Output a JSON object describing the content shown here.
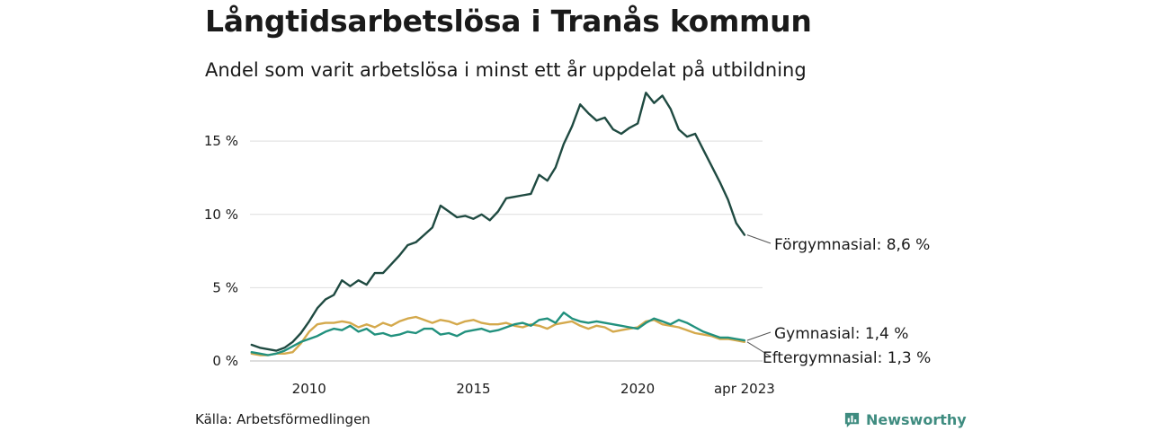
{
  "header": {
    "title": "Långtidsarbetslösa i Tranås kommun",
    "subtitle": "Andel som varit arbetslösa i minst ett år uppdelat på utbildning"
  },
  "footer": {
    "source": "Källa: Arbetsförmedlingen",
    "brand": "Newsworthy",
    "brand_icon": "bar-chart-speech-bubble-icon",
    "brand_color": "#3f8c80"
  },
  "chart_data": {
    "type": "line",
    "title": "",
    "xlabel": "",
    "ylabel": "",
    "x_ticks": [
      {
        "label": "2010",
        "value": 2010.0
      },
      {
        "label": "2015",
        "value": 2015.0
      },
      {
        "label": "2020",
        "value": 2020.0
      },
      {
        "label": "apr 2023",
        "value": 2023.25
      }
    ],
    "y_ticks": [
      {
        "label": "0 %",
        "value": 0
      },
      {
        "label": "5 %",
        "value": 5
      },
      {
        "label": "10 %",
        "value": 10
      },
      {
        "label": "15 %",
        "value": 15
      }
    ],
    "xlim": [
      2008.2,
      2023.8
    ],
    "ylim": [
      0,
      18.5
    ],
    "grid": "horizontal",
    "series": [
      {
        "name": "Förgymnasial",
        "end_label": "Förgymnasial: 8,6 %",
        "color": "#1f4a41",
        "points": [
          [
            2008.25,
            1.1
          ],
          [
            2008.5,
            0.9
          ],
          [
            2008.75,
            0.8
          ],
          [
            2009.0,
            0.7
          ],
          [
            2009.25,
            0.9
          ],
          [
            2009.5,
            1.3
          ],
          [
            2009.75,
            1.9
          ],
          [
            2010.0,
            2.7
          ],
          [
            2010.25,
            3.6
          ],
          [
            2010.5,
            4.2
          ],
          [
            2010.75,
            4.5
          ],
          [
            2011.0,
            5.5
          ],
          [
            2011.25,
            5.1
          ],
          [
            2011.5,
            5.5
          ],
          [
            2011.75,
            5.2
          ],
          [
            2012.0,
            6.0
          ],
          [
            2012.25,
            6.0
          ],
          [
            2012.5,
            6.6
          ],
          [
            2012.75,
            7.2
          ],
          [
            2013.0,
            7.9
          ],
          [
            2013.25,
            8.1
          ],
          [
            2013.5,
            8.6
          ],
          [
            2013.75,
            9.1
          ],
          [
            2014.0,
            10.6
          ],
          [
            2014.25,
            10.2
          ],
          [
            2014.5,
            9.8
          ],
          [
            2014.75,
            9.9
          ],
          [
            2015.0,
            9.7
          ],
          [
            2015.25,
            10.0
          ],
          [
            2015.5,
            9.6
          ],
          [
            2015.75,
            10.2
          ],
          [
            2016.0,
            11.1
          ],
          [
            2016.25,
            11.2
          ],
          [
            2016.5,
            11.3
          ],
          [
            2016.75,
            11.4
          ],
          [
            2017.0,
            12.7
          ],
          [
            2017.25,
            12.3
          ],
          [
            2017.5,
            13.2
          ],
          [
            2017.75,
            14.8
          ],
          [
            2018.0,
            16.0
          ],
          [
            2018.25,
            17.5
          ],
          [
            2018.5,
            16.9
          ],
          [
            2018.75,
            16.4
          ],
          [
            2019.0,
            16.6
          ],
          [
            2019.25,
            15.8
          ],
          [
            2019.5,
            15.5
          ],
          [
            2019.75,
            15.9
          ],
          [
            2020.0,
            16.2
          ],
          [
            2020.25,
            18.3
          ],
          [
            2020.5,
            17.6
          ],
          [
            2020.75,
            18.1
          ],
          [
            2021.0,
            17.2
          ],
          [
            2021.25,
            15.8
          ],
          [
            2021.5,
            15.3
          ],
          [
            2021.75,
            15.5
          ],
          [
            2022.0,
            14.4
          ],
          [
            2022.25,
            13.3
          ],
          [
            2022.5,
            12.2
          ],
          [
            2022.75,
            11.0
          ],
          [
            2023.0,
            9.4
          ],
          [
            2023.25,
            8.6
          ]
        ]
      },
      {
        "name": "Gymnasial",
        "end_label": "Gymnasial: 1,4 %",
        "color": "#22917e",
        "points": [
          [
            2008.25,
            0.6
          ],
          [
            2008.5,
            0.5
          ],
          [
            2008.75,
            0.4
          ],
          [
            2009.0,
            0.5
          ],
          [
            2009.25,
            0.7
          ],
          [
            2009.5,
            1.0
          ],
          [
            2009.75,
            1.3
          ],
          [
            2010.0,
            1.5
          ],
          [
            2010.25,
            1.7
          ],
          [
            2010.5,
            2.0
          ],
          [
            2010.75,
            2.2
          ],
          [
            2011.0,
            2.1
          ],
          [
            2011.25,
            2.4
          ],
          [
            2011.5,
            2.0
          ],
          [
            2011.75,
            2.2
          ],
          [
            2012.0,
            1.8
          ],
          [
            2012.25,
            1.9
          ],
          [
            2012.5,
            1.7
          ],
          [
            2012.75,
            1.8
          ],
          [
            2013.0,
            2.0
          ],
          [
            2013.25,
            1.9
          ],
          [
            2013.5,
            2.2
          ],
          [
            2013.75,
            2.2
          ],
          [
            2014.0,
            1.8
          ],
          [
            2014.25,
            1.9
          ],
          [
            2014.5,
            1.7
          ],
          [
            2014.75,
            2.0
          ],
          [
            2015.0,
            2.1
          ],
          [
            2015.25,
            2.2
          ],
          [
            2015.5,
            2.0
          ],
          [
            2015.75,
            2.1
          ],
          [
            2016.0,
            2.3
          ],
          [
            2016.25,
            2.5
          ],
          [
            2016.5,
            2.6
          ],
          [
            2016.75,
            2.4
          ],
          [
            2017.0,
            2.8
          ],
          [
            2017.25,
            2.9
          ],
          [
            2017.5,
            2.6
          ],
          [
            2017.75,
            3.3
          ],
          [
            2018.0,
            2.9
          ],
          [
            2018.25,
            2.7
          ],
          [
            2018.5,
            2.6
          ],
          [
            2018.75,
            2.7
          ],
          [
            2019.0,
            2.6
          ],
          [
            2019.25,
            2.5
          ],
          [
            2019.5,
            2.4
          ],
          [
            2019.75,
            2.3
          ],
          [
            2020.0,
            2.2
          ],
          [
            2020.25,
            2.6
          ],
          [
            2020.5,
            2.9
          ],
          [
            2020.75,
            2.7
          ],
          [
            2021.0,
            2.5
          ],
          [
            2021.25,
            2.8
          ],
          [
            2021.5,
            2.6
          ],
          [
            2021.75,
            2.3
          ],
          [
            2022.0,
            2.0
          ],
          [
            2022.25,
            1.8
          ],
          [
            2022.5,
            1.6
          ],
          [
            2022.75,
            1.6
          ],
          [
            2023.0,
            1.5
          ],
          [
            2023.25,
            1.4
          ]
        ]
      },
      {
        "name": "Eftergymnasial",
        "end_label": "Eftergymnasial: 1,3 %",
        "color": "#d4a94c",
        "points": [
          [
            2008.25,
            0.5
          ],
          [
            2008.5,
            0.4
          ],
          [
            2008.75,
            0.4
          ],
          [
            2009.0,
            0.5
          ],
          [
            2009.25,
            0.5
          ],
          [
            2009.5,
            0.6
          ],
          [
            2009.75,
            1.2
          ],
          [
            2010.0,
            2.0
          ],
          [
            2010.25,
            2.5
          ],
          [
            2010.5,
            2.6
          ],
          [
            2010.75,
            2.6
          ],
          [
            2011.0,
            2.7
          ],
          [
            2011.25,
            2.6
          ],
          [
            2011.5,
            2.3
          ],
          [
            2011.75,
            2.5
          ],
          [
            2012.0,
            2.3
          ],
          [
            2012.25,
            2.6
          ],
          [
            2012.5,
            2.4
          ],
          [
            2012.75,
            2.7
          ],
          [
            2013.0,
            2.9
          ],
          [
            2013.25,
            3.0
          ],
          [
            2013.5,
            2.8
          ],
          [
            2013.75,
            2.6
          ],
          [
            2014.0,
            2.8
          ],
          [
            2014.25,
            2.7
          ],
          [
            2014.5,
            2.5
          ],
          [
            2014.75,
            2.7
          ],
          [
            2015.0,
            2.8
          ],
          [
            2015.25,
            2.6
          ],
          [
            2015.5,
            2.5
          ],
          [
            2015.75,
            2.5
          ],
          [
            2016.0,
            2.6
          ],
          [
            2016.25,
            2.4
          ],
          [
            2016.5,
            2.3
          ],
          [
            2016.75,
            2.5
          ],
          [
            2017.0,
            2.4
          ],
          [
            2017.25,
            2.2
          ],
          [
            2017.5,
            2.5
          ],
          [
            2017.75,
            2.6
          ],
          [
            2018.0,
            2.7
          ],
          [
            2018.25,
            2.4
          ],
          [
            2018.5,
            2.2
          ],
          [
            2018.75,
            2.4
          ],
          [
            2019.0,
            2.3
          ],
          [
            2019.25,
            2.0
          ],
          [
            2019.5,
            2.1
          ],
          [
            2019.75,
            2.2
          ],
          [
            2020.0,
            2.3
          ],
          [
            2020.25,
            2.7
          ],
          [
            2020.5,
            2.8
          ],
          [
            2020.75,
            2.5
          ],
          [
            2021.0,
            2.4
          ],
          [
            2021.25,
            2.3
          ],
          [
            2021.5,
            2.1
          ],
          [
            2021.75,
            1.9
          ],
          [
            2022.0,
            1.8
          ],
          [
            2022.25,
            1.7
          ],
          [
            2022.5,
            1.5
          ],
          [
            2022.75,
            1.5
          ],
          [
            2023.0,
            1.4
          ],
          [
            2023.25,
            1.3
          ]
        ]
      }
    ]
  }
}
